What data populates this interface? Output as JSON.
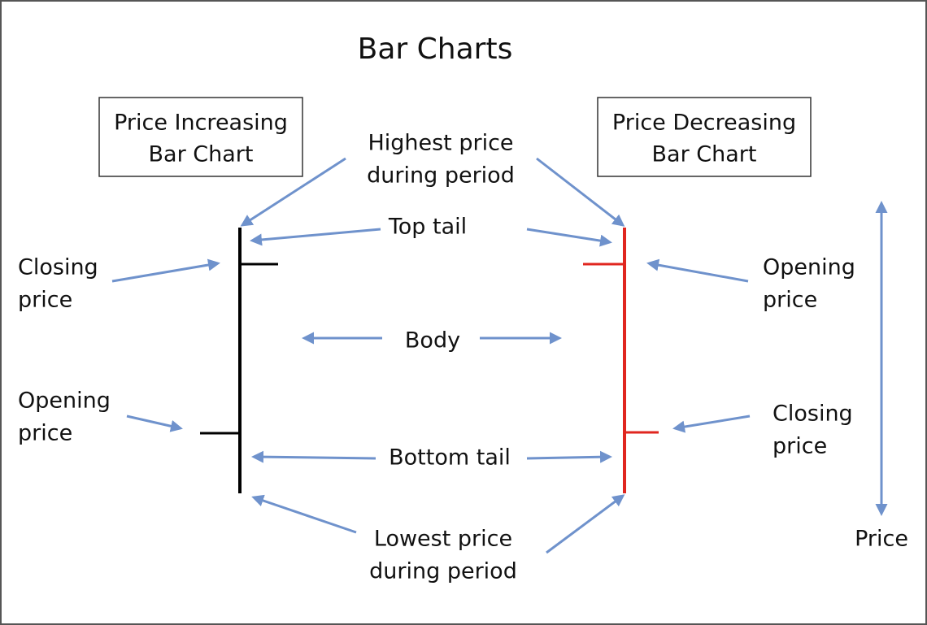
{
  "title": "Bar Charts",
  "boxes": [
    {
      "lines": [
        "Price Increasing",
        "Bar Chart"
      ]
    },
    {
      "lines": [
        "Price Decreasing",
        "Bar Chart"
      ]
    }
  ],
  "labels": [
    {
      "lines": [
        "Highest price",
        "during period"
      ]
    },
    {
      "lines": [
        "Top tail"
      ]
    },
    {
      "lines": [
        "Closing",
        "price"
      ]
    },
    {
      "lines": [
        "Opening",
        "price"
      ]
    },
    {
      "lines": [
        "Body"
      ]
    },
    {
      "lines": [
        "Opening",
        "price"
      ]
    },
    {
      "lines": [
        "Closing",
        "price"
      ]
    },
    {
      "lines": [
        "Bottom tail"
      ]
    },
    {
      "lines": [
        "Lowest price",
        "during period"
      ]
    },
    {
      "lines": [
        "Price"
      ]
    }
  ]
}
